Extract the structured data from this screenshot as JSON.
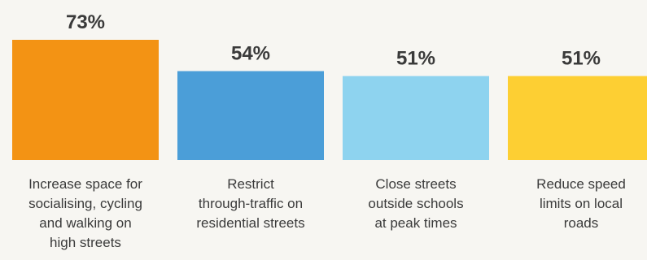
{
  "chart_data": {
    "type": "bar",
    "title": "",
    "xlabel": "",
    "ylabel": "",
    "ylim": [
      0,
      73
    ],
    "grid": false,
    "unit_suffix": "%",
    "categories": [
      [
        "Increase space for",
        "socialising, cycling",
        "and walking on",
        "high streets"
      ],
      [
        "Restrict",
        "through-traffic on",
        "residential streets"
      ],
      [
        "Close streets",
        "outside schools",
        "at peak times"
      ],
      [
        "Reduce speed",
        "limits on local",
        "roads"
      ]
    ],
    "values": [
      73,
      54,
      51,
      51
    ],
    "value_labels": [
      "73%",
      "54%",
      "51%",
      "51%"
    ],
    "colors": [
      "#f39314",
      "#4b9ed8",
      "#8ed3ef",
      "#fdcf33"
    ]
  }
}
